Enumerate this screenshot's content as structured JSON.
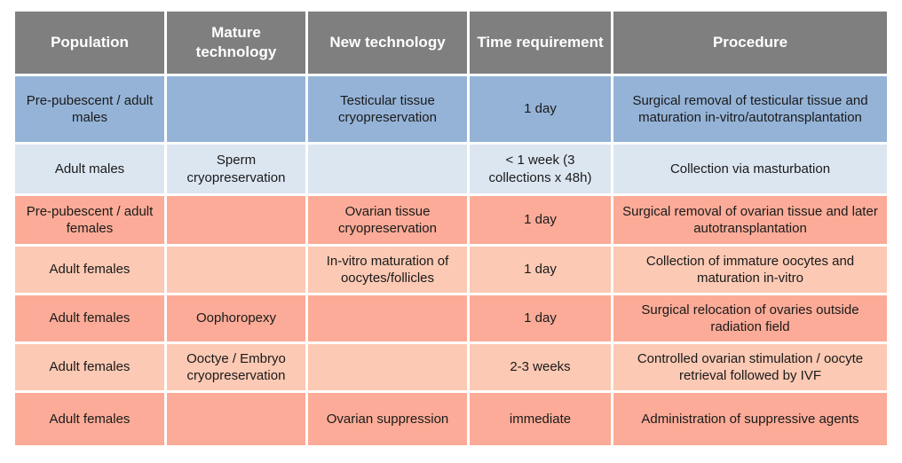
{
  "table": {
    "columns": [
      "Population",
      "Mature technology",
      "New technology",
      "Time requirement",
      "Procedure"
    ],
    "rows": [
      {
        "group": "male-dark",
        "population": "Pre-pubescent / adult males",
        "mature_technology": "",
        "new_technology": "Testicular tissue cryopreservation",
        "time_requirement": "1 day",
        "procedure": "Surgical removal of testicular tissue and maturation in-vitro/autotransplantation"
      },
      {
        "group": "male-light",
        "population": "Adult males",
        "mature_technology": "Sperm cryopreservation",
        "new_technology": "",
        "time_requirement": "< 1 week (3 collections x 48h)",
        "procedure": "Collection via masturbation"
      },
      {
        "group": "female-dark",
        "population": "Pre-pubescent / adult females",
        "mature_technology": "",
        "new_technology": "Ovarian tissue cryopreservation",
        "time_requirement": "1 day",
        "procedure": "Surgical removal of ovarian tissue and later autotransplantation"
      },
      {
        "group": "female-light",
        "population": "Adult females",
        "mature_technology": "",
        "new_technology": "In-vitro maturation of oocytes/follicles",
        "time_requirement": "1 day",
        "procedure": "Collection of immature oocytes and maturation in-vitro"
      },
      {
        "group": "female-dark",
        "population": "Adult females",
        "mature_technology": "Oophoropexy",
        "new_technology": "",
        "time_requirement": "1 day",
        "procedure": "Surgical relocation of ovaries outside radiation field"
      },
      {
        "group": "female-light",
        "population": "Adult females",
        "mature_technology": "Ooctye / Embryo cryopreservation",
        "new_technology": "",
        "time_requirement": "2-3 weeks",
        "procedure": "Controlled ovarian stimulation / oocyte retrieval followed by IVF"
      },
      {
        "group": "female-dark",
        "population": "Adult females",
        "mature_technology": "",
        "new_technology": "Ovarian suppression",
        "time_requirement": "immediate",
        "procedure": "Administration of suppressive agents"
      }
    ]
  },
  "palette": {
    "header_bg": "#7f7f7f",
    "header_text": "#ffffff",
    "male_dark": "#95b3d7",
    "male_light": "#dce6f1",
    "female_dark": "#fbab97",
    "female_light": "#fcc9b4",
    "body_text": "#1a1a1a",
    "grid": "#ffffff"
  }
}
